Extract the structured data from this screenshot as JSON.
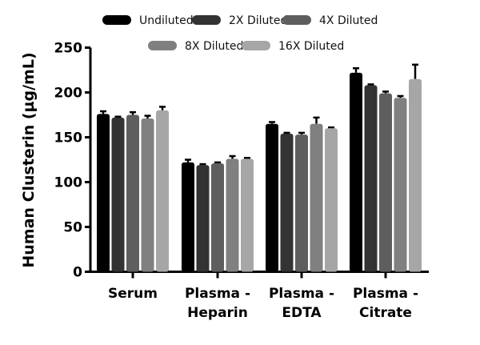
{
  "chart_data": {
    "type": "bar",
    "ylabel": "Human Clusterin (µg/mL)",
    "ylim": [
      0,
      250
    ],
    "yticks": [
      "0",
      "50",
      "100",
      "150",
      "200",
      "250"
    ],
    "categories": [
      [
        "Serum"
      ],
      [
        "Plasma -",
        "Heparin"
      ],
      [
        "Plasma -",
        "EDTA"
      ],
      [
        "Plasma -",
        "Citrate"
      ]
    ],
    "legend_position": "top",
    "series": [
      {
        "name": "Undiluted",
        "color": "#000000",
        "values": [
          176,
          122,
          165,
          222
        ],
        "errors": [
          3,
          3,
          2,
          5
        ]
      },
      {
        "name": "2X Diluted",
        "color": "#333333",
        "values": [
          172,
          119,
          154,
          208
        ],
        "errors": [
          1,
          1,
          1,
          1
        ]
      },
      {
        "name": "4X Diluted",
        "color": "#5e5e5e",
        "values": [
          175,
          121,
          153,
          199
        ],
        "errors": [
          3,
          1,
          2,
          2
        ]
      },
      {
        "name": "8X Diluted",
        "color": "#808080",
        "values": [
          171,
          126,
          165,
          194
        ],
        "errors": [
          3,
          3,
          7,
          2
        ]
      },
      {
        "name": "16X Diluted",
        "color": "#a6a6a6",
        "values": [
          180,
          126,
          160,
          215
        ],
        "errors": [
          4,
          1,
          1,
          16
        ]
      }
    ]
  }
}
